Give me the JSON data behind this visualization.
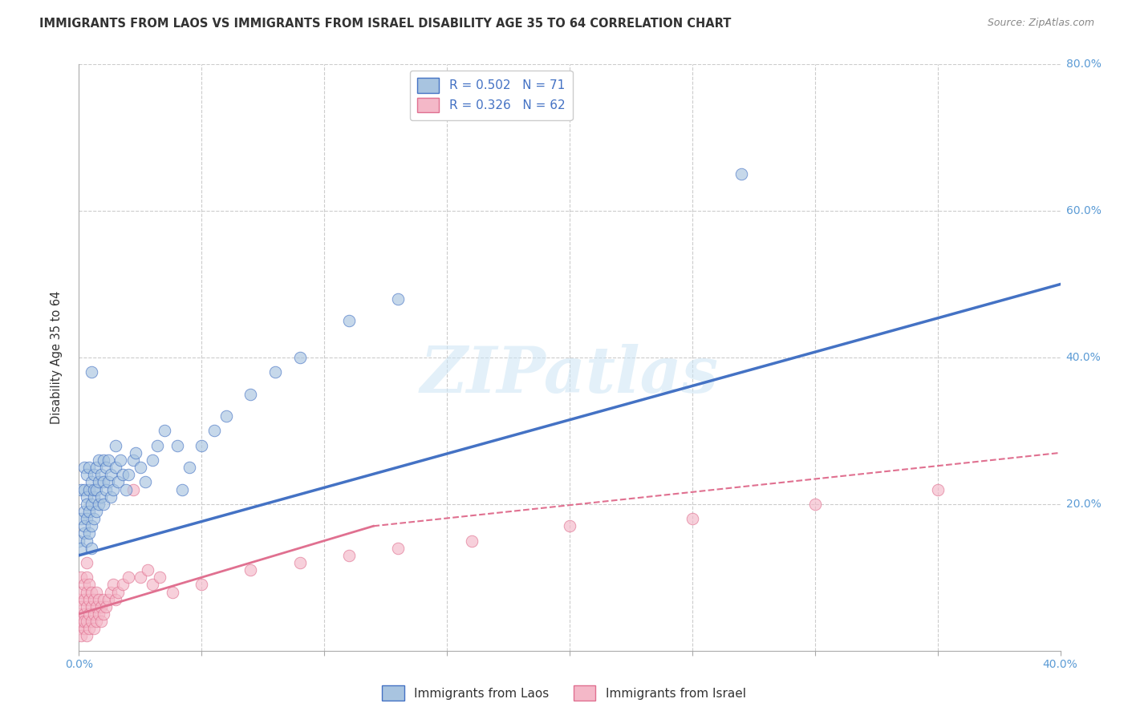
{
  "title": "IMMIGRANTS FROM LAOS VS IMMIGRANTS FROM ISRAEL DISABILITY AGE 35 TO 64 CORRELATION CHART",
  "source": "Source: ZipAtlas.com",
  "ylabel": "Disability Age 35 to 64",
  "xlim": [
    0.0,
    0.4
  ],
  "ylim": [
    0.0,
    0.8
  ],
  "color_laos": "#a8c4e0",
  "color_israel": "#f4b8c8",
  "line_color_laos": "#4472c4",
  "line_color_israel": "#e07090",
  "R_laos": 0.502,
  "N_laos": 71,
  "R_israel": 0.326,
  "N_israel": 62,
  "watermark": "ZIPatlas",
  "background_color": "#ffffff",
  "grid_color": "#cccccc",
  "laos_x": [
    0.0,
    0.001,
    0.001,
    0.001,
    0.002,
    0.002,
    0.002,
    0.002,
    0.002,
    0.003,
    0.003,
    0.003,
    0.003,
    0.003,
    0.004,
    0.004,
    0.004,
    0.004,
    0.005,
    0.005,
    0.005,
    0.005,
    0.006,
    0.006,
    0.006,
    0.006,
    0.007,
    0.007,
    0.007,
    0.008,
    0.008,
    0.008,
    0.009,
    0.009,
    0.01,
    0.01,
    0.01,
    0.011,
    0.011,
    0.012,
    0.012,
    0.013,
    0.013,
    0.014,
    0.015,
    0.015,
    0.016,
    0.017,
    0.018,
    0.019,
    0.02,
    0.022,
    0.023,
    0.025,
    0.027,
    0.03,
    0.032,
    0.035,
    0.04,
    0.042,
    0.045,
    0.05,
    0.055,
    0.06,
    0.07,
    0.08,
    0.09,
    0.11,
    0.13,
    0.27,
    0.005
  ],
  "laos_y": [
    0.15,
    0.14,
    0.18,
    0.22,
    0.16,
    0.19,
    0.22,
    0.25,
    0.17,
    0.15,
    0.18,
    0.21,
    0.24,
    0.2,
    0.16,
    0.19,
    0.22,
    0.25,
    0.14,
    0.17,
    0.2,
    0.23,
    0.18,
    0.21,
    0.24,
    0.22,
    0.19,
    0.22,
    0.25,
    0.2,
    0.23,
    0.26,
    0.21,
    0.24,
    0.2,
    0.23,
    0.26,
    0.22,
    0.25,
    0.23,
    0.26,
    0.24,
    0.21,
    0.22,
    0.25,
    0.28,
    0.23,
    0.26,
    0.24,
    0.22,
    0.24,
    0.26,
    0.27,
    0.25,
    0.23,
    0.26,
    0.28,
    0.3,
    0.28,
    0.22,
    0.25,
    0.28,
    0.3,
    0.32,
    0.35,
    0.38,
    0.4,
    0.45,
    0.48,
    0.65,
    0.38
  ],
  "israel_x": [
    0.0,
    0.0,
    0.0,
    0.001,
    0.001,
    0.001,
    0.001,
    0.001,
    0.002,
    0.002,
    0.002,
    0.002,
    0.002,
    0.003,
    0.003,
    0.003,
    0.003,
    0.003,
    0.003,
    0.004,
    0.004,
    0.004,
    0.004,
    0.005,
    0.005,
    0.005,
    0.006,
    0.006,
    0.006,
    0.007,
    0.007,
    0.007,
    0.008,
    0.008,
    0.009,
    0.009,
    0.01,
    0.01,
    0.011,
    0.012,
    0.013,
    0.014,
    0.015,
    0.016,
    0.018,
    0.02,
    0.022,
    0.025,
    0.028,
    0.03,
    0.033,
    0.038,
    0.05,
    0.07,
    0.09,
    0.11,
    0.13,
    0.16,
    0.2,
    0.25,
    0.3,
    0.35
  ],
  "israel_y": [
    0.03,
    0.05,
    0.07,
    0.02,
    0.04,
    0.06,
    0.08,
    0.1,
    0.03,
    0.05,
    0.07,
    0.09,
    0.04,
    0.02,
    0.04,
    0.06,
    0.08,
    0.1,
    0.12,
    0.03,
    0.05,
    0.07,
    0.09,
    0.04,
    0.06,
    0.08,
    0.03,
    0.05,
    0.07,
    0.04,
    0.06,
    0.08,
    0.05,
    0.07,
    0.04,
    0.06,
    0.05,
    0.07,
    0.06,
    0.07,
    0.08,
    0.09,
    0.07,
    0.08,
    0.09,
    0.1,
    0.22,
    0.1,
    0.11,
    0.09,
    0.1,
    0.08,
    0.09,
    0.11,
    0.12,
    0.13,
    0.14,
    0.15,
    0.17,
    0.18,
    0.2,
    0.22
  ],
  "laos_line_x": [
    0.0,
    0.4
  ],
  "laos_line_y": [
    0.13,
    0.5
  ],
  "israel_solid_line_x": [
    0.0,
    0.12
  ],
  "israel_solid_line_y": [
    0.05,
    0.17
  ],
  "israel_dash_line_x": [
    0.12,
    0.4
  ],
  "israel_dash_line_y": [
    0.17,
    0.27
  ]
}
